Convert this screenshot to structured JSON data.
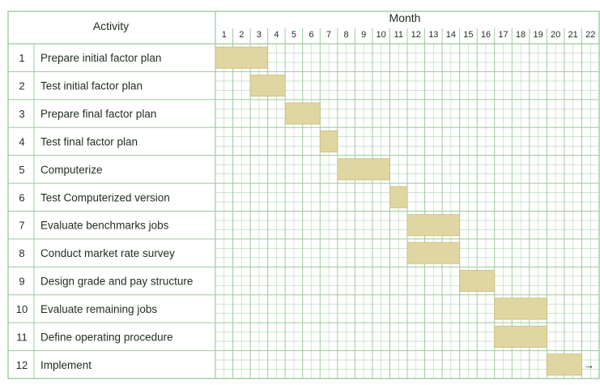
{
  "chart_data": {
    "type": "gantt",
    "header": {
      "activity": "Activity",
      "timeline": "Month"
    },
    "months": [
      "1",
      "2",
      "3",
      "4",
      "5",
      "6",
      "7",
      "8",
      "9",
      "10",
      "11",
      "12",
      "13",
      "14",
      "15",
      "16",
      "17",
      "18",
      "19",
      "20",
      "21",
      "22"
    ],
    "tasks": [
      {
        "id": "1",
        "name": "Prepare initial factor plan",
        "start": 1,
        "end": 3
      },
      {
        "id": "2",
        "name": "Test initial factor plan",
        "start": 3,
        "end": 4
      },
      {
        "id": "3",
        "name": "Prepare final factor plan",
        "start": 5,
        "end": 6
      },
      {
        "id": "4",
        "name": "Test final factor plan",
        "start": 7,
        "end": 7
      },
      {
        "id": "5",
        "name": "Computerize",
        "start": 8,
        "end": 10
      },
      {
        "id": "6",
        "name": "Test Computerized version",
        "start": 11,
        "end": 11
      },
      {
        "id": "7",
        "name": "Evaluate benchmarks jobs",
        "start": 12,
        "end": 14
      },
      {
        "id": "8",
        "name": "Conduct market rate survey",
        "start": 12,
        "end": 14
      },
      {
        "id": "9",
        "name": "Design grade and pay structure",
        "start": 15,
        "end": 16
      },
      {
        "id": "10",
        "name": "Evaluate remaining jobs",
        "start": 17,
        "end": 19
      },
      {
        "id": "11",
        "name": "Define operating procedure",
        "start": 17,
        "end": 19
      },
      {
        "id": "12",
        "name": "Implement",
        "start": 20,
        "end": 21,
        "continues": true
      }
    ],
    "continuation_symbol": "→",
    "bar_color": "#dfd6a1",
    "grid_color": "#9ccc9c"
  }
}
